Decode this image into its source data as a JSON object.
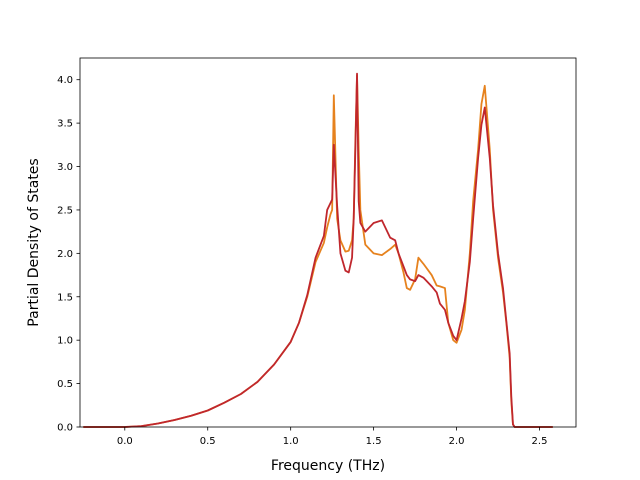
{
  "chart_data": {
    "type": "line",
    "title": "",
    "xlabel": "Frequency (THz)",
    "ylabel": "Partial Density of States",
    "xlim": [
      -0.27,
      2.72
    ],
    "ylim": [
      0.0,
      4.25
    ],
    "xticks": [
      0.0,
      0.5,
      1.0,
      1.5,
      2.0,
      2.5
    ],
    "xtick_labels": [
      "0.0",
      "0.5",
      "1.0",
      "1.5",
      "2.0",
      "2.5"
    ],
    "yticks": [
      0.0,
      0.5,
      1.0,
      1.5,
      2.0,
      2.5,
      3.0,
      3.5,
      4.0
    ],
    "ytick_labels": [
      "0.0",
      "0.5",
      "1.0",
      "1.5",
      "2.0",
      "2.5",
      "3.0",
      "3.5",
      "4.0"
    ],
    "grid": false,
    "legend": "none",
    "series": [
      {
        "color": "#e6821e",
        "x": [
          -0.25,
          0.0,
          0.1,
          0.2,
          0.3,
          0.4,
          0.5,
          0.6,
          0.7,
          0.8,
          0.9,
          1.0,
          1.05,
          1.1,
          1.15,
          1.2,
          1.22,
          1.24,
          1.25,
          1.26,
          1.28,
          1.3,
          1.33,
          1.35,
          1.37,
          1.38,
          1.39,
          1.4,
          1.41,
          1.42,
          1.45,
          1.5,
          1.55,
          1.6,
          1.63,
          1.65,
          1.68,
          1.7,
          1.72,
          1.75,
          1.77,
          1.8,
          1.85,
          1.88,
          1.9,
          1.93,
          1.95,
          1.98,
          2.0,
          2.03,
          2.05,
          2.08,
          2.1,
          2.13,
          2.15,
          2.17,
          2.2,
          2.22,
          2.25,
          2.28,
          2.3,
          2.32,
          2.33,
          2.34,
          2.35,
          2.4,
          2.58
        ],
        "y": [
          0.0,
          0.0,
          0.01,
          0.04,
          0.08,
          0.13,
          0.19,
          0.28,
          0.38,
          0.52,
          0.72,
          0.98,
          1.2,
          1.5,
          1.9,
          2.12,
          2.3,
          2.45,
          2.5,
          3.82,
          2.4,
          2.15,
          2.02,
          2.03,
          2.15,
          2.4,
          3.3,
          4.05,
          3.2,
          2.5,
          2.1,
          2.0,
          1.98,
          2.05,
          2.1,
          2.0,
          1.78,
          1.6,
          1.58,
          1.7,
          1.95,
          1.88,
          1.75,
          1.63,
          1.62,
          1.6,
          1.2,
          1.0,
          0.97,
          1.12,
          1.35,
          2.0,
          2.6,
          3.2,
          3.72,
          3.93,
          3.2,
          2.5,
          1.95,
          1.55,
          1.2,
          0.8,
          0.3,
          0.03,
          0.0,
          0.0,
          0.0
        ]
      },
      {
        "color": "#c0272d",
        "x": [
          -0.25,
          0.0,
          0.1,
          0.2,
          0.3,
          0.4,
          0.5,
          0.6,
          0.7,
          0.8,
          0.9,
          1.0,
          1.05,
          1.1,
          1.15,
          1.2,
          1.22,
          1.24,
          1.25,
          1.26,
          1.28,
          1.3,
          1.33,
          1.35,
          1.37,
          1.38,
          1.39,
          1.4,
          1.41,
          1.42,
          1.45,
          1.5,
          1.55,
          1.6,
          1.63,
          1.65,
          1.68,
          1.7,
          1.72,
          1.75,
          1.77,
          1.8,
          1.85,
          1.88,
          1.9,
          1.93,
          1.95,
          1.98,
          2.0,
          2.03,
          2.05,
          2.08,
          2.1,
          2.13,
          2.15,
          2.17,
          2.2,
          2.22,
          2.25,
          2.28,
          2.3,
          2.32,
          2.33,
          2.34,
          2.35,
          2.4,
          2.58
        ],
        "y": [
          0.0,
          0.0,
          0.01,
          0.04,
          0.08,
          0.13,
          0.19,
          0.28,
          0.38,
          0.52,
          0.72,
          0.98,
          1.2,
          1.52,
          1.95,
          2.2,
          2.5,
          2.58,
          2.62,
          3.25,
          2.55,
          2.0,
          1.8,
          1.78,
          1.95,
          2.4,
          3.2,
          4.07,
          2.6,
          2.35,
          2.25,
          2.35,
          2.38,
          2.18,
          2.15,
          2.0,
          1.85,
          1.75,
          1.7,
          1.68,
          1.75,
          1.72,
          1.62,
          1.55,
          1.42,
          1.35,
          1.2,
          1.05,
          1.0,
          1.25,
          1.45,
          1.9,
          2.4,
          3.1,
          3.48,
          3.68,
          3.1,
          2.55,
          2.0,
          1.6,
          1.22,
          0.85,
          0.35,
          0.03,
          0.0,
          0.0,
          0.0
        ]
      }
    ]
  }
}
